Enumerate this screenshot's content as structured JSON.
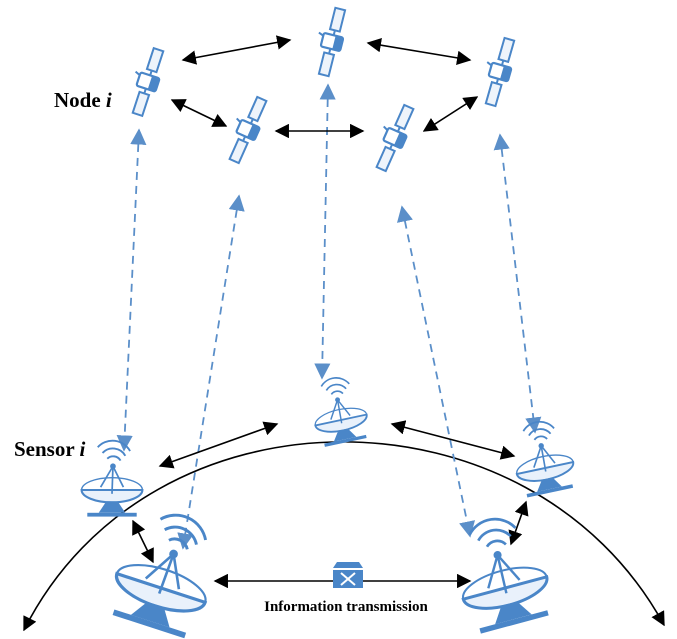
{
  "labels": {
    "node_word": "Node",
    "node_var": "i",
    "sensor_word": "Sensor",
    "sensor_var": "i",
    "info": "Information transmission"
  },
  "icons": {
    "satellite": "satellite-icon",
    "dish": "satellite-dish-icon",
    "router": "router-icon"
  },
  "colors": {
    "device": "#4a86c8",
    "device_light": "#e9f1fb",
    "dashed": "#5b8fc9",
    "solid": "#000000"
  }
}
